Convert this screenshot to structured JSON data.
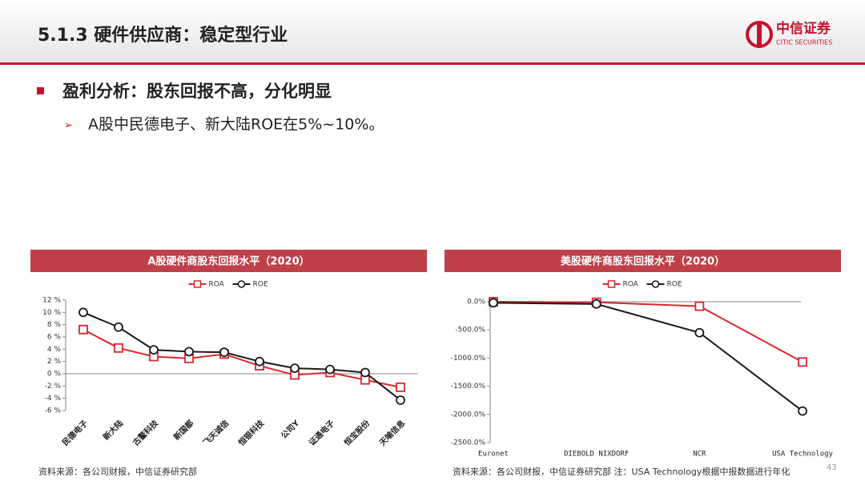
{
  "header": {
    "title": "5.1.3 硬件供应商：稳定型行业",
    "logo_cn": "中信证券",
    "logo_en": "CITIC SECURITIES"
  },
  "bullet": {
    "heading": "盈利分析：股东回报不高，分化明显",
    "sub": "A股中民德电子、新大陆ROE在5%~10%。"
  },
  "chart_data": [
    {
      "type": "line",
      "title": "A股硬件商股东回报水平（2020）",
      "categories": [
        "民德电子",
        "新大陆",
        "古鳌科技",
        "新国都",
        "飞天诚信",
        "恒银科技",
        "公司Y",
        "证通电子",
        "恒宝股份",
        "天喻信息"
      ],
      "series": [
        {
          "name": "ROA",
          "color": "#d9262c",
          "values": [
            7.2,
            4.2,
            2.8,
            2.5,
            3.2,
            1.3,
            -0.2,
            0.2,
            -1.0,
            -2.2
          ]
        },
        {
          "name": "ROE",
          "color": "#1a1a1a",
          "values": [
            10.0,
            7.6,
            3.9,
            3.6,
            3.5,
            2.0,
            0.9,
            0.7,
            0.2,
            -4.3
          ]
        }
      ],
      "ylim": [
        -6,
        12
      ],
      "yticks": [
        {
          "value": 12,
          "label": "12 %"
        },
        {
          "value": 10,
          "label": "10 %"
        },
        {
          "value": 8,
          "label": "8 %"
        },
        {
          "value": 6,
          "label": "6 %"
        },
        {
          "value": 4,
          "label": "4 %"
        },
        {
          "value": 2,
          "label": "2 %"
        },
        {
          "value": 0,
          "label": "0 %"
        },
        {
          "value": -2,
          "label": "-2 %"
        },
        {
          "value": -4,
          "label": "-4 %"
        },
        {
          "value": -6,
          "label": "-6 %"
        }
      ],
      "source": "资料来源：各公司财报，中信证券研究部"
    },
    {
      "type": "line",
      "title": "美股硬件商股东回报水平（2020）",
      "categories": [
        "Euronet",
        "DIEBOLD NIXDORF",
        "NCR",
        "USA Technology"
      ],
      "series": [
        {
          "name": "ROA",
          "color": "#d9262c",
          "values": [
            0,
            -10,
            -80,
            -1070
          ]
        },
        {
          "name": "ROE",
          "color": "#1a1a1a",
          "values": [
            -20,
            -40,
            -550,
            -1940
          ]
        }
      ],
      "ylim": [
        -2500,
        0
      ],
      "yticks": [
        {
          "value": 0,
          "label": "0.0%"
        },
        {
          "value": -500,
          "label": "-500.0%"
        },
        {
          "value": -1000,
          "label": "-1000.0%"
        },
        {
          "value": -1500,
          "label": "-1500.0%"
        },
        {
          "value": -2000,
          "label": "-2000.0%"
        },
        {
          "value": -2500,
          "label": "-2500.0%"
        }
      ],
      "source": "资料来源：各公司财报，中信证券研究部  注：USA Technology根据中报数据进行年化"
    }
  ],
  "page_number": "43"
}
